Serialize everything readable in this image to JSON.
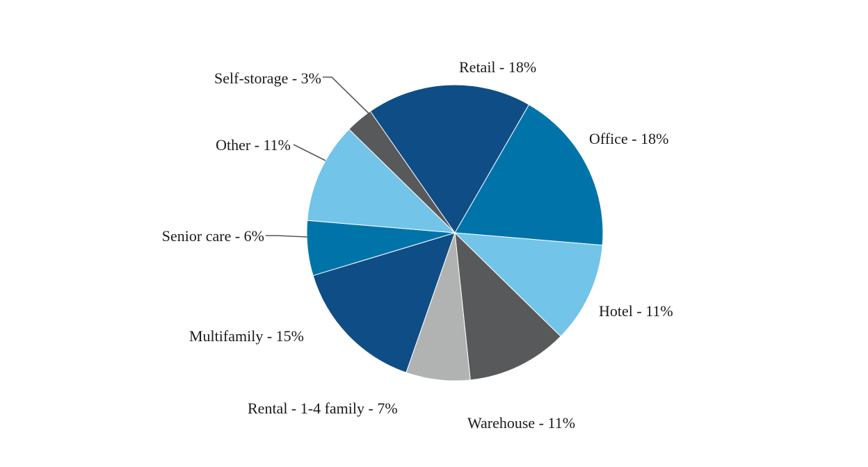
{
  "chart_data": {
    "type": "pie",
    "start_angle_deg": 30,
    "direction": "clockwise",
    "labels_format": "{name} - {value}%",
    "slices": [
      {
        "name": "Office",
        "value": 18,
        "color": "#0074a9",
        "label": "Office - 18%"
      },
      {
        "name": "Hotel",
        "value": 11,
        "color": "#72c4e8",
        "label": "Hotel - 11%"
      },
      {
        "name": "Warehouse",
        "value": 11,
        "color": "#58595b",
        "label": "Warehouse - 11%"
      },
      {
        "name": "Rental - 1-4 family",
        "value": 7,
        "color": "#b1b3b3",
        "label": "Rental - 1-4 family - 7%"
      },
      {
        "name": "Multifamily",
        "value": 15,
        "color": "#0f4d86",
        "label": "Multifamily - 15%"
      },
      {
        "name": "Senior care",
        "value": 6,
        "color": "#0074a9",
        "label": "Senior care - 6%"
      },
      {
        "name": "Other",
        "value": 11,
        "color": "#72c4e8",
        "label": "Other - 11%"
      },
      {
        "name": "Self-storage",
        "value": 3,
        "color": "#58595b",
        "label": "Self-storage - 3%"
      },
      {
        "name": "Retail",
        "value": 18,
        "color": "#0f4d86",
        "label": "Retail - 18%"
      }
    ]
  }
}
